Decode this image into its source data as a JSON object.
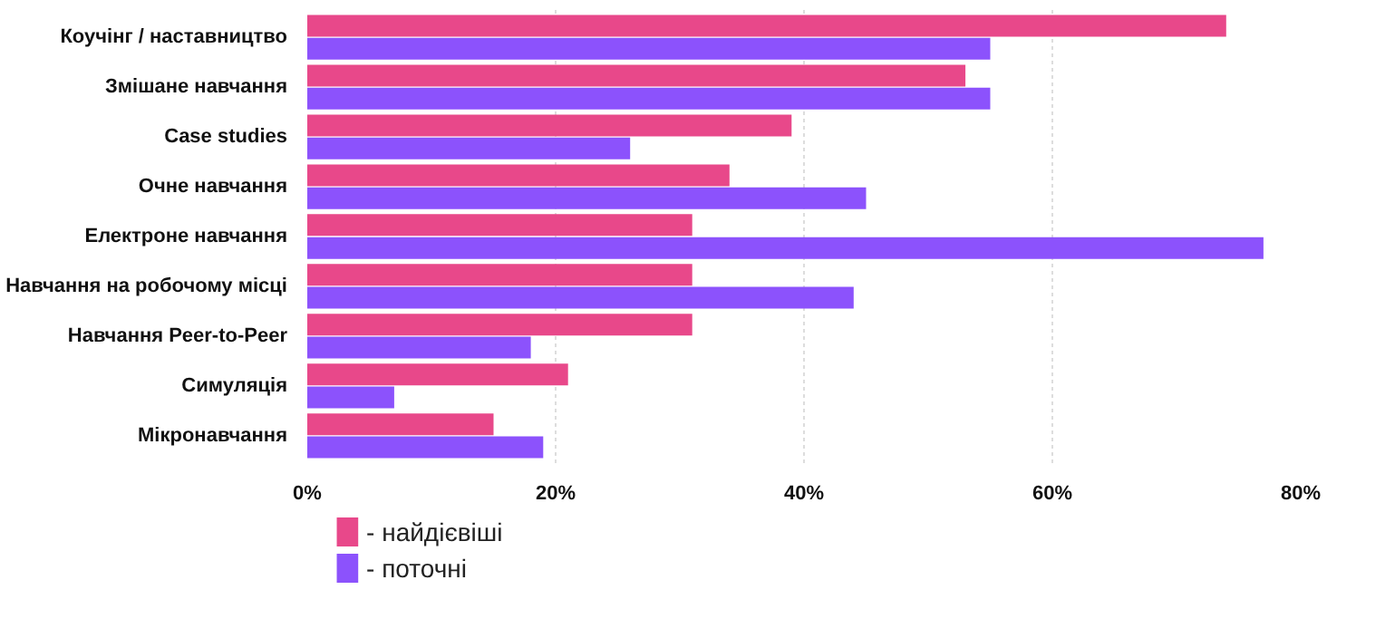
{
  "chart_data": {
    "type": "bar",
    "orientation": "horizontal",
    "categories": [
      "Коучінг / наставництво",
      "Змішане навчання",
      "Case studies",
      "Очне навчання",
      "Електроне навчання",
      "Навчання на робочому місці",
      "Навчання Peer-to-Peer",
      "Симуляція",
      "Мікронавчання"
    ],
    "series": [
      {
        "name": "- найдієвіші",
        "color": "#e8488a",
        "values": [
          74,
          53,
          39,
          34,
          31,
          31,
          31,
          21,
          15
        ]
      },
      {
        "name": "- поточні",
        "color": "#8c52fc",
        "values": [
          55,
          55,
          26,
          45,
          77,
          44,
          18,
          7,
          19
        ]
      }
    ],
    "xlim": [
      0,
      80
    ],
    "xticks": [
      {
        "value": 0,
        "label": "0%"
      },
      {
        "value": 20,
        "label": "20%"
      },
      {
        "value": 40,
        "label": "40%"
      },
      {
        "value": 60,
        "label": "60%"
      },
      {
        "value": 80,
        "label": "80%"
      }
    ],
    "grid": "x",
    "legend": "bottom left"
  }
}
